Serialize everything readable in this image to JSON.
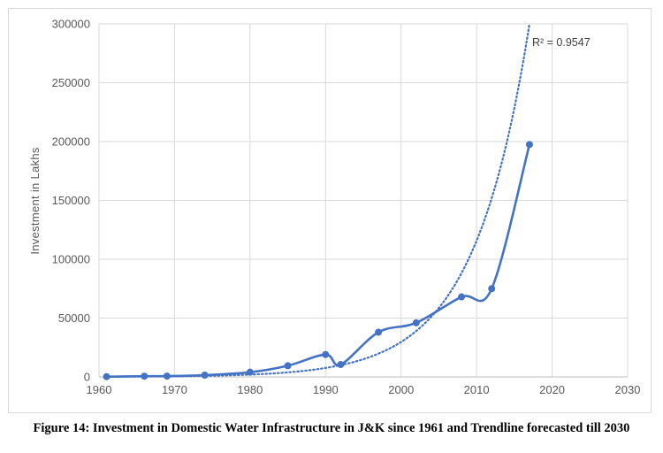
{
  "chart_data": {
    "type": "line",
    "title": "",
    "xlabel": "",
    "ylabel": "Investment in  Lakhs",
    "xlim": [
      1960,
      2030
    ],
    "ylim": [
      0,
      300000
    ],
    "x_ticks": [
      "1960",
      "1970",
      "1980",
      "1990",
      "2000",
      "2010",
      "2020",
      "2030"
    ],
    "y_ticks": [
      "0",
      "50000",
      "100000",
      "150000",
      "200000",
      "250000",
      "300000"
    ],
    "grid": true,
    "legend": "none",
    "series": [
      {
        "color": "#4472c4",
        "smoothed": true,
        "markers": true,
        "points": [
          {
            "x": 1961,
            "y": 200
          },
          {
            "x": 1966,
            "y": 600
          },
          {
            "x": 1969,
            "y": 700
          },
          {
            "x": 1974,
            "y": 1500
          },
          {
            "x": 1980,
            "y": 4000
          },
          {
            "x": 1985,
            "y": 9500
          },
          {
            "x": 1990,
            "y": 19000
          },
          {
            "x": 1992,
            "y": 10500
          },
          {
            "x": 1997,
            "y": 38000
          },
          {
            "x": 2002,
            "y": 46000
          },
          {
            "x": 2008,
            "y": 68000
          },
          {
            "x": 2012,
            "y": 75000
          },
          {
            "x": 2017,
            "y": 197500
          }
        ]
      }
    ],
    "trendline": {
      "type": "exponential",
      "style": "dotted",
      "color": "#4472c4",
      "anchor_points": [
        {
          "x": 1992,
          "y": 10000
        },
        {
          "x": 2017,
          "y": 300000
        }
      ]
    },
    "annotations": [
      {
        "text": "R² = 0.9547"
      }
    ]
  },
  "caption": "Figure 14: Investment in Domestic Water Infrastructure in J&K since 1961 and Trendline forecasted till 2030"
}
